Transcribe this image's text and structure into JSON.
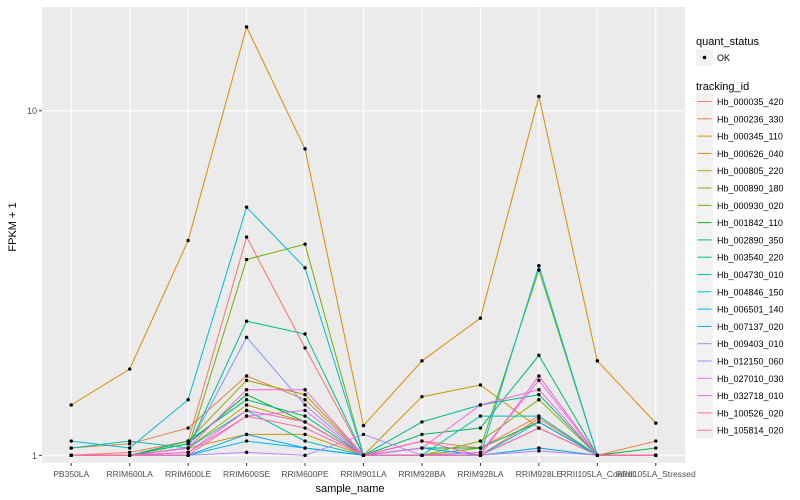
{
  "chart_data": {
    "type": "line",
    "title": "",
    "xlabel": "sample_name",
    "ylabel": "FPKM + 1",
    "y_scale": "log10",
    "ylim": [
      0.95,
      20
    ],
    "y_ticks": [
      1,
      10
    ],
    "y_tick_labels": [
      "1",
      "10"
    ],
    "grid": true,
    "legend_position": "right",
    "categories": [
      "PB350LA",
      "RRIM600LA",
      "RRIM600LE",
      "RRIM600SE",
      "RRIM600PE",
      "RRIM901LA",
      "RRIM928BA",
      "RRIM928LA",
      "RRIM928LE",
      "RRII105LA_Control",
      "RRII105LA_Stressed"
    ],
    "shape_legend": {
      "title": "quant_status",
      "items": [
        {
          "label": "OK"
        }
      ]
    },
    "color_legend_title": "tracking_id",
    "series": [
      {
        "name": "Hb_000035_420",
        "color": "#F8766D",
        "values": [
          1.0,
          1.02,
          1.1,
          4.3,
          2.05,
          1.0,
          1.1,
          1.05,
          1.3,
          1.0,
          1.0
        ]
      },
      {
        "name": "Hb_000236_330",
        "color": "#EE8043",
        "values": [
          1.05,
          1.08,
          1.2,
          1.7,
          1.45,
          1.0,
          1.0,
          1.0,
          1.28,
          1.0,
          1.1
        ]
      },
      {
        "name": "Hb_000345_110",
        "color": "#DF8B00",
        "values": [
          1.4,
          1.78,
          4.2,
          17.5,
          7.75,
          1.22,
          1.88,
          2.5,
          11.0,
          1.88,
          1.24
        ]
      },
      {
        "name": "Hb_000626_040",
        "color": "#CB9600",
        "values": [
          1.0,
          1.0,
          1.05,
          1.15,
          1.15,
          1.0,
          1.48,
          1.6,
          1.2,
          1.0,
          1.0
        ]
      },
      {
        "name": "Hb_000805_220",
        "color": "#B3A000",
        "values": [
          1.0,
          1.0,
          1.05,
          1.4,
          1.25,
          1.0,
          1.0,
          1.0,
          1.05,
          1.0,
          1.0
        ]
      },
      {
        "name": "Hb_000890_180",
        "color": "#96A900",
        "values": [
          1.0,
          1.0,
          1.1,
          1.65,
          1.5,
          1.0,
          1.0,
          1.1,
          1.45,
          1.0,
          1.0
        ]
      },
      {
        "name": "Hb_000930_020",
        "color": "#6FB000",
        "values": [
          1.0,
          1.0,
          1.05,
          3.7,
          4.1,
          1.0,
          1.0,
          1.05,
          3.45,
          1.0,
          1.0
        ]
      },
      {
        "name": "Hb_001842_110",
        "color": "#00B530",
        "values": [
          1.0,
          1.0,
          1.08,
          1.5,
          1.25,
          1.0,
          1.05,
          1.05,
          1.25,
          1.0,
          1.05
        ]
      },
      {
        "name": "Hb_002890_350",
        "color": "#00BA68",
        "values": [
          1.0,
          1.0,
          1.1,
          1.45,
          1.3,
          1.0,
          1.15,
          1.2,
          1.95,
          1.0,
          1.0
        ]
      },
      {
        "name": "Hb_003540_220",
        "color": "#00BD91",
        "values": [
          1.0,
          1.0,
          1.05,
          2.45,
          2.25,
          1.0,
          1.25,
          1.4,
          1.5,
          1.0,
          1.0
        ]
      },
      {
        "name": "Hb_004730_010",
        "color": "#00BFB4",
        "values": [
          1.05,
          1.1,
          1.05,
          1.35,
          1.1,
          1.0,
          1.0,
          1.3,
          1.3,
          1.0,
          1.0
        ]
      },
      {
        "name": "Hb_004846_150",
        "color": "#00BCD6",
        "values": [
          1.1,
          1.05,
          1.45,
          5.25,
          3.5,
          1.0,
          1.0,
          1.0,
          3.55,
          1.0,
          1.0
        ]
      },
      {
        "name": "Hb_006501_140",
        "color": "#00B5EE",
        "values": [
          1.0,
          1.0,
          1.0,
          1.1,
          1.05,
          1.0,
          1.0,
          1.0,
          1.05,
          1.0,
          1.0
        ]
      },
      {
        "name": "Hb_007137_020",
        "color": "#00A8FF",
        "values": [
          1.0,
          1.0,
          1.0,
          1.15,
          1.05,
          1.0,
          1.05,
          1.0,
          1.25,
          1.0,
          1.0
        ]
      },
      {
        "name": "Hb_009403_010",
        "color": "#7F96FF",
        "values": [
          1.0,
          1.0,
          1.05,
          2.2,
          1.4,
          1.0,
          1.0,
          1.0,
          1.2,
          1.0,
          1.0
        ]
      },
      {
        "name": "Hb_012150_060",
        "color": "#BB83FF",
        "values": [
          1.0,
          1.0,
          1.0,
          1.02,
          1.0,
          1.15,
          1.0,
          1.0,
          1.03,
          1.0,
          1.0
        ]
      },
      {
        "name": "Hb_027010_030",
        "color": "#E36EF6",
        "values": [
          1.0,
          1.0,
          1.02,
          1.3,
          1.35,
          1.0,
          1.0,
          1.02,
          1.65,
          1.0,
          1.0
        ]
      },
      {
        "name": "Hb_032718_010",
        "color": "#F763DF",
        "values": [
          1.0,
          1.0,
          1.05,
          1.55,
          1.55,
          1.0,
          1.05,
          1.4,
          1.55,
          1.0,
          1.0
        ]
      },
      {
        "name": "Hb_100526_020",
        "color": "#FF62BC",
        "values": [
          1.0,
          1.0,
          1.02,
          1.35,
          1.25,
          1.0,
          1.1,
          1.0,
          1.7,
          1.0,
          1.0
        ]
      },
      {
        "name": "Hb_105814_020",
        "color": "#FF6A98",
        "values": [
          1.0,
          1.0,
          1.0,
          1.3,
          1.2,
          1.0,
          1.0,
          1.0,
          1.2,
          1.0,
          1.0
        ]
      }
    ]
  },
  "colors": {
    "panel_background": "#EBEBEB",
    "grid_major": "#FFFFFF",
    "grid_minor": "#F3F3F3",
    "axis_text": "#4D4D4D",
    "title_text": "#000000",
    "point": "#000000"
  }
}
